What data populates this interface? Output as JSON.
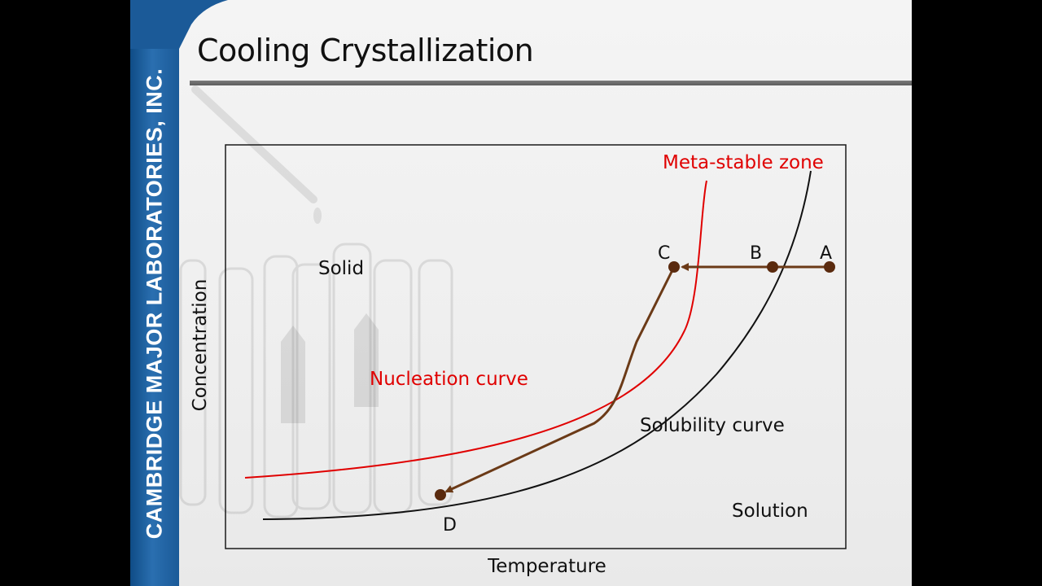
{
  "company": "CAMBRIDGE MAJOR LABORATORIES, INC.",
  "title": "Cooling Crystallization",
  "colors": {
    "brand_blue": "#1b5a98",
    "nucleation_red": "#e00000",
    "path_brown": "#6b3a17",
    "point_brown": "#5a2a0e"
  },
  "diagram": {
    "x_axis_label": "Temperature",
    "y_axis_label": "Concentration",
    "region_labels": {
      "solid": "Solid",
      "solution": "Solution"
    },
    "curve_labels": {
      "metastable": "Meta-stable zone",
      "nucleation": "Nucleation curve",
      "solubility": "Solubility curve"
    },
    "points": {
      "A": "A",
      "B": "B",
      "C": "C",
      "D": "D"
    }
  }
}
